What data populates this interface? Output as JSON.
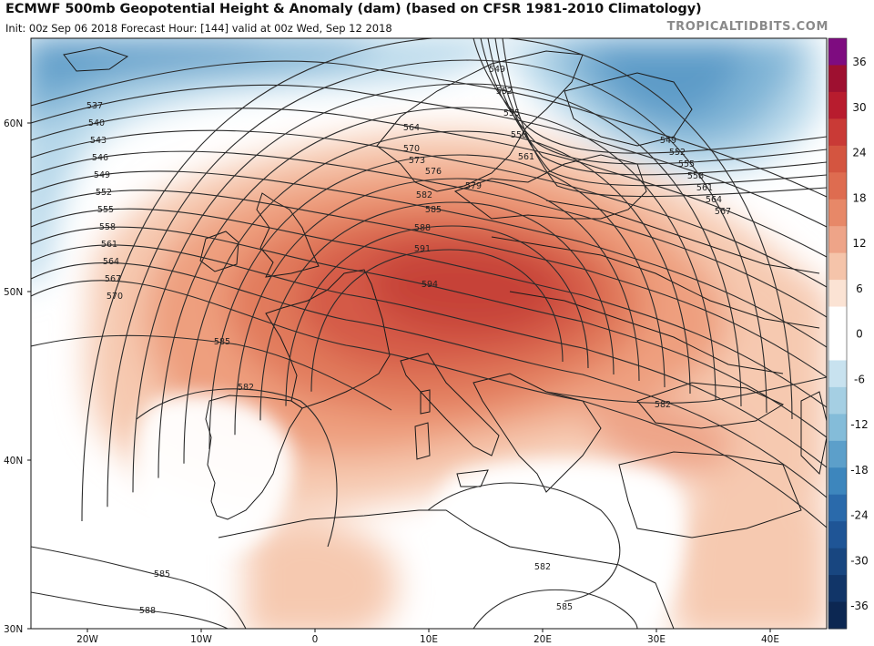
{
  "header": {
    "title": "ECMWF 500mb Geopotential Height & Anomaly (dam) (based on CFSR 1981-2010 Climatology)",
    "subtitle": "Init: 00z Sep 06 2018   Forecast Hour: [144]   valid at 00z Wed, Sep 12 2018",
    "watermark": "TROPICALTIDBITS.COM"
  },
  "axes": {
    "lat_ticks": [
      "60N",
      "50N",
      "40N",
      "30N"
    ],
    "lon_ticks": [
      "20W",
      "10W",
      "0",
      "10E",
      "20E",
      "30E",
      "40E"
    ]
  },
  "colorbar": {
    "labels": [
      "36",
      "30",
      "24",
      "18",
      "12",
      "6",
      "0",
      "-6",
      "-12",
      "-18",
      "-24",
      "-30",
      "-36"
    ],
    "colors": [
      "#7e0c80",
      "#9e1030",
      "#b81c2e",
      "#c93a36",
      "#d45540",
      "#de6c50",
      "#e78868",
      "#eea488",
      "#f5c4aa",
      "#fbe3d4",
      "#ffffff",
      "#ffffff",
      "#c8e2ef",
      "#a5cfe3",
      "#84bcd9",
      "#5c9fca",
      "#3d86bd",
      "#2a6aab",
      "#1f5596",
      "#184680",
      "#113568",
      "#0c2752"
    ]
  },
  "contours": {
    "north_labels": [
      "537",
      "540",
      "543",
      "546",
      "549",
      "552",
      "555",
      "558",
      "561",
      "564",
      "567",
      "570"
    ],
    "north_values": [
      537,
      540,
      543,
      546,
      549,
      552,
      555,
      558,
      561,
      564,
      567,
      570
    ],
    "scandinavia_labels": [
      "549",
      "552",
      "555",
      "558",
      "561"
    ],
    "east_labels": [
      "549",
      "552",
      "555",
      "558",
      "561",
      "564",
      "567"
    ],
    "ridge_labels": [
      "564",
      "570",
      "573",
      "576",
      "579",
      "582",
      "585",
      "588",
      "591",
      "594"
    ],
    "south_labels": [
      "585",
      "582",
      "582",
      "582",
      "585",
      "585",
      "588"
    ]
  },
  "colors": {
    "land_outline": "#1a1a1a",
    "contour_line": "#2b2b2b",
    "ocean_bg": "#ffffff"
  }
}
